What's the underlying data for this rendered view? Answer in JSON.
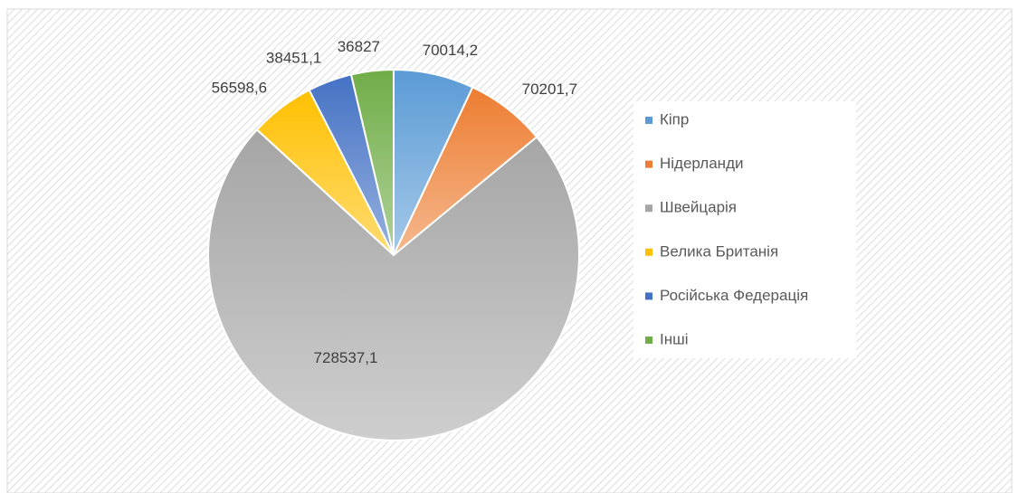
{
  "chart_data": {
    "type": "pie",
    "categories": [
      "Кіпр",
      "Нідерланди",
      "Швейцарія",
      "Велика Британія",
      "Російська Федерація",
      "Інші"
    ],
    "values": [
      70014.2,
      70201.7,
      728537.1,
      56598.6,
      38451.1,
      36827
    ],
    "value_labels": [
      "70014,2",
      "70201,7",
      "728537,1",
      "56598,6",
      "38451,1",
      "36827"
    ],
    "colors": [
      "#5b9bd5",
      "#ed7d31",
      "#a5a5a5",
      "#ffc000",
      "#4472c4",
      "#70ad47"
    ],
    "legend": "right"
  }
}
